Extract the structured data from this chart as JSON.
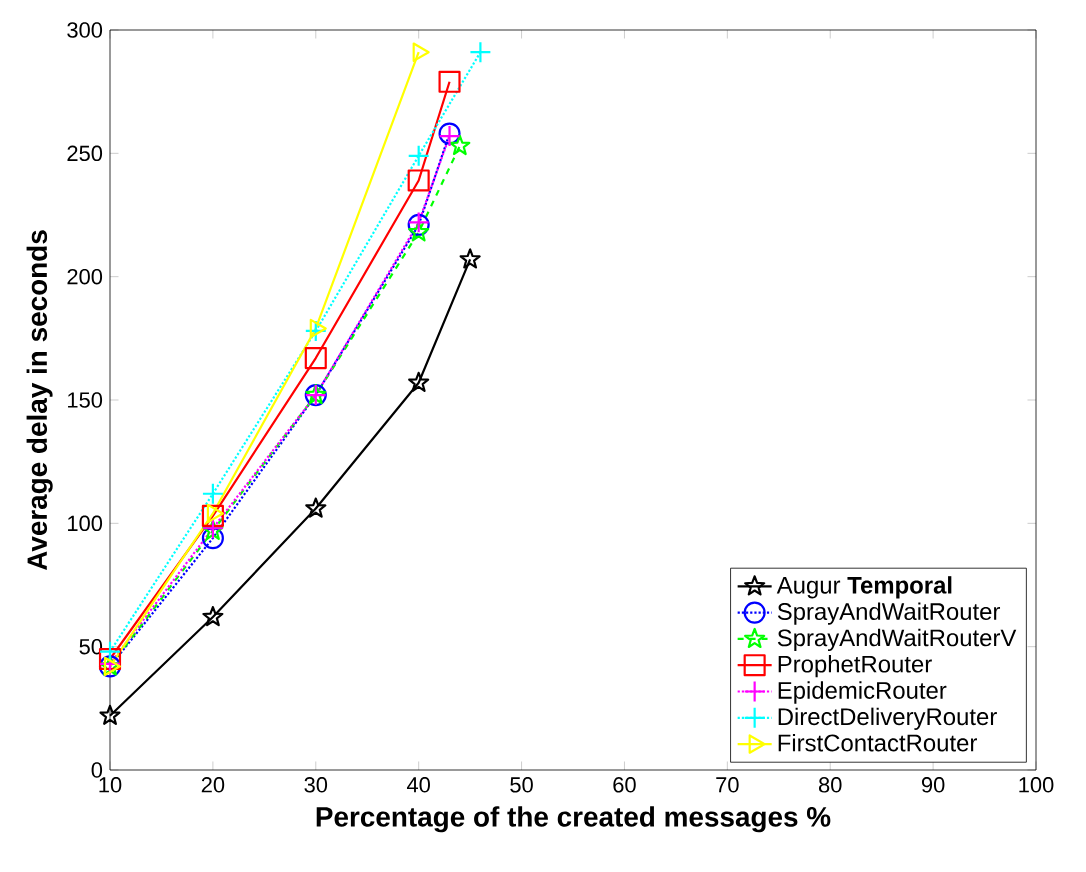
{
  "chart_data": {
    "type": "line",
    "xlabel": "Percentage of the created messages %",
    "ylabel": "Average delay in seconds",
    "xlim": [
      10,
      100
    ],
    "xticks": [
      10,
      20,
      30,
      40,
      50,
      60,
      70,
      80,
      90,
      100
    ],
    "ylim": [
      0,
      300
    ],
    "yticks": [
      0,
      50,
      100,
      150,
      200,
      250,
      300
    ],
    "legend": "bottom right",
    "series": [
      {
        "name": "Augur **Temporal**",
        "color": "#000000",
        "marker": "star",
        "line_style": "solid",
        "x": [
          10,
          20,
          30,
          40,
          45
        ],
        "values": [
          22,
          62,
          106,
          157,
          207
        ]
      },
      {
        "name": "SprayAndWaitRouter",
        "color": "#0000ff",
        "marker": "circle",
        "line_style": "dotted",
        "x": [
          10,
          20,
          30,
          40,
          43
        ],
        "values": [
          42,
          94,
          152,
          221,
          258
        ]
      },
      {
        "name": "SprayAndWaitRouterV",
        "color": "#00ff00",
        "marker": "star",
        "line_style": "dashed",
        "x": [
          10,
          20,
          30,
          40,
          44
        ],
        "values": [
          42,
          97,
          152,
          218,
          253
        ]
      },
      {
        "name": "ProphetRouter",
        "color": "#ff0000",
        "marker": "square",
        "line_style": "solid",
        "x": [
          10,
          20,
          30,
          40,
          43
        ],
        "values": [
          45,
          103,
          167,
          239,
          279
        ]
      },
      {
        "name": "EpidemicRouter",
        "color": "#ff00ff",
        "marker": "cross",
        "line_style": "dotted",
        "x": [
          10,
          20,
          30,
          40,
          43
        ],
        "values": [
          43,
          98,
          152,
          222,
          257
        ]
      },
      {
        "name": "DirectDeliveryRouter",
        "color": "#00ffff",
        "marker": "cross",
        "line_style": "dotted",
        "x": [
          10,
          20,
          30,
          40,
          46
        ],
        "values": [
          48,
          112,
          178,
          249,
          291
        ]
      },
      {
        "name": "FirstContactRouter",
        "color": "#ffff00",
        "marker": "triangle",
        "line_style": "solid",
        "x": [
          10,
          20,
          30,
          40
        ],
        "values": [
          42,
          104,
          179,
          291
        ]
      }
    ]
  }
}
